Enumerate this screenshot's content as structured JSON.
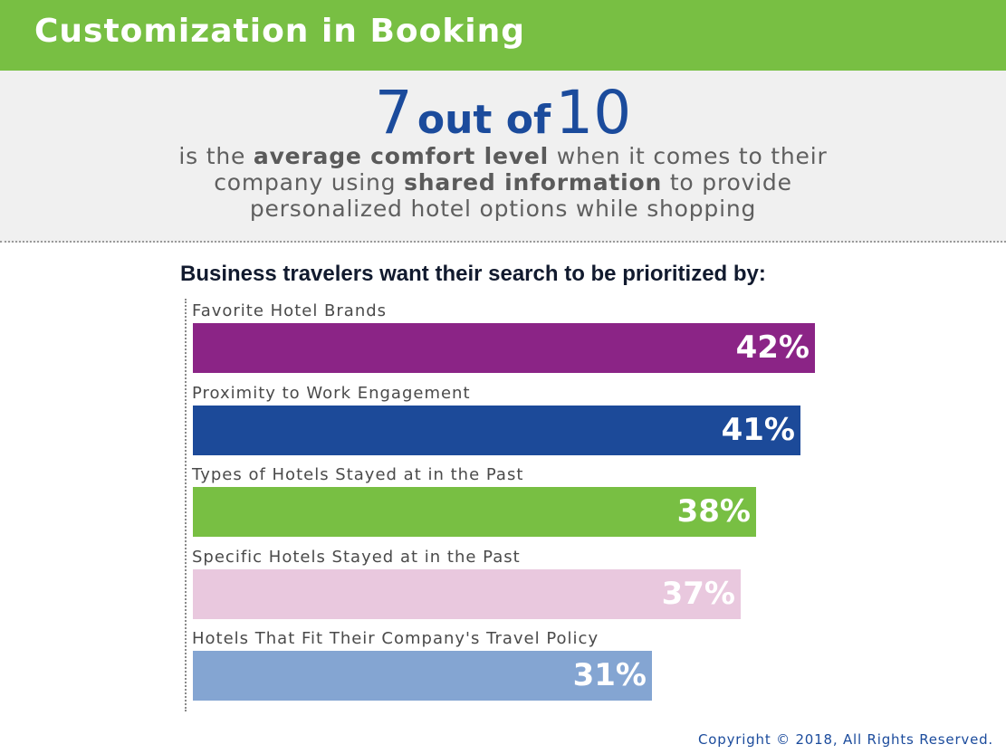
{
  "header": {
    "title": "Customization in Booking"
  },
  "stat": {
    "num1": "7",
    "middle": "out of",
    "num2": "10",
    "desc_line1_pre": "is the ",
    "desc_line1_bold": "average comfort level",
    "desc_line1_post": " when it comes to their",
    "desc_line2_pre": "company using ",
    "desc_line2_bold": "shared information",
    "desc_line2_post": " to provide",
    "desc_line3": "personalized hotel options while shopping"
  },
  "chart_data": {
    "type": "bar",
    "orientation": "horizontal",
    "title": "Business travelers want their search to be prioritized by:",
    "categories": [
      "Favorite Hotel Brands",
      "Proximity to Work Engagement",
      "Types of Hotels Stayed at in the Past",
      "Specific Hotels Stayed at in the Past",
      "Hotels That Fit Their Company's Travel Policy"
    ],
    "values": [
      42,
      41,
      38,
      37,
      31
    ],
    "value_labels": [
      "42%",
      "41%",
      "38%",
      "37%",
      "31%"
    ],
    "colors": [
      "#8b2486",
      "#1c4a99",
      "#78bf43",
      "#e9c8de",
      "#84a5d2"
    ],
    "unit": "%",
    "grid": false,
    "legend": "none"
  },
  "footer": {
    "copyright": "Copyright © 2018, All Rights Reserved."
  }
}
